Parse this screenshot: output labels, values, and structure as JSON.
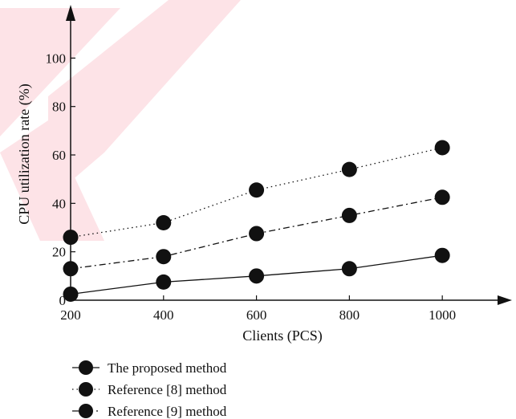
{
  "chart_data": {
    "type": "line",
    "xlabel": "Clients (PCS)",
    "ylabel": "CPU utilization rate (%)",
    "x": [
      200,
      400,
      600,
      800,
      1000
    ],
    "xlim": [
      200,
      1150
    ],
    "ylim": [
      0,
      122
    ],
    "x_ticks": [
      "200",
      "400",
      "600",
      "800",
      "1000"
    ],
    "y_ticks": [
      "0",
      "20",
      "40",
      "60",
      "80",
      "100"
    ],
    "series": [
      {
        "name": "The proposed method",
        "values": [
          2.5,
          7.5,
          10,
          13,
          18.5
        ],
        "line_style": "solid"
      },
      {
        "name": "Reference [8] method",
        "values": [
          26,
          32,
          45.5,
          54,
          63
        ],
        "line_style": "dotted"
      },
      {
        "name": "Reference [9] method",
        "values": [
          13,
          18,
          27.5,
          35,
          42.5
        ],
        "line_style": "dash-dot"
      }
    ],
    "marker": "circle",
    "grid": false,
    "legend_position": "bottom"
  },
  "colors": {
    "ink": "#111111",
    "watermark": "#fde0e5"
  }
}
